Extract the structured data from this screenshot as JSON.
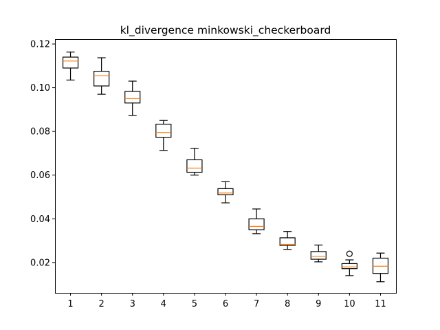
{
  "chart_data": {
    "type": "box",
    "title": "kl_divergence minkowski_checkerboard",
    "xlabel": "",
    "ylabel": "",
    "xlim": [
      0.5,
      11.5
    ],
    "ylim": [
      0.0061,
      0.1222
    ],
    "yticks": [
      0.02,
      0.04,
      0.06,
      0.08,
      0.1,
      0.12
    ],
    "ytick_labels": [
      "0.02",
      "0.04",
      "0.06",
      "0.08",
      "0.10",
      "0.12"
    ],
    "categories": [
      "1",
      "2",
      "3",
      "4",
      "5",
      "6",
      "7",
      "8",
      "9",
      "10",
      "11"
    ],
    "grid": false,
    "box_color": "#000000",
    "median_color": "#ff7f0e",
    "boxes": [
      {
        "whisker_low": 0.1035,
        "q1": 0.109,
        "median": 0.1122,
        "q3": 0.114,
        "whisker_high": 0.1163,
        "outliers": []
      },
      {
        "whisker_low": 0.097,
        "q1": 0.1008,
        "median": 0.1055,
        "q3": 0.1075,
        "whisker_high": 0.1137,
        "outliers": []
      },
      {
        "whisker_low": 0.0873,
        "q1": 0.093,
        "median": 0.095,
        "q3": 0.0983,
        "whisker_high": 0.103,
        "outliers": []
      },
      {
        "whisker_low": 0.0713,
        "q1": 0.0773,
        "median": 0.0795,
        "q3": 0.0833,
        "whisker_high": 0.085,
        "outliers": []
      },
      {
        "whisker_low": 0.06,
        "q1": 0.0613,
        "median": 0.0632,
        "q3": 0.067,
        "whisker_high": 0.0723,
        "outliers": []
      },
      {
        "whisker_low": 0.0473,
        "q1": 0.051,
        "median": 0.0518,
        "q3": 0.0538,
        "whisker_high": 0.057,
        "outliers": []
      },
      {
        "whisker_low": 0.0332,
        "q1": 0.035,
        "median": 0.0365,
        "q3": 0.04,
        "whisker_high": 0.0445,
        "outliers": []
      },
      {
        "whisker_low": 0.026,
        "q1": 0.0278,
        "median": 0.0283,
        "q3": 0.0313,
        "whisker_high": 0.0342,
        "outliers": []
      },
      {
        "whisker_low": 0.0203,
        "q1": 0.0215,
        "median": 0.0228,
        "q3": 0.025,
        "whisker_high": 0.028,
        "outliers": []
      },
      {
        "whisker_low": 0.014,
        "q1": 0.0172,
        "median": 0.018,
        "q3": 0.0195,
        "whisker_high": 0.0212,
        "outliers": [
          0.024
        ]
      },
      {
        "whisker_low": 0.0112,
        "q1": 0.015,
        "median": 0.0183,
        "q3": 0.022,
        "whisker_high": 0.0243,
        "outliers": []
      }
    ]
  }
}
